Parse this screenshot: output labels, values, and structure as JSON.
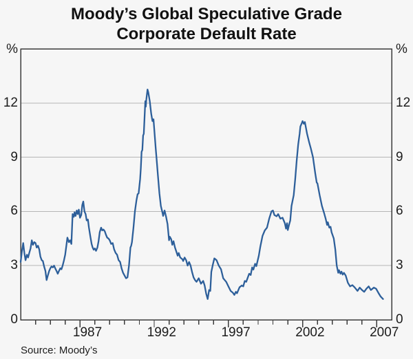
{
  "title": {
    "line1": "Moody’s Global Speculative Grade",
    "line2": "Corporate Default Rate"
  },
  "source": "Source: Moody’s",
  "axes": {
    "y_unit_left": "%",
    "y_unit_right": "%",
    "y_ticks": [
      0,
      3,
      6,
      9,
      12
    ],
    "x_labels": [
      1987,
      1992,
      1997,
      2002,
      2007
    ]
  },
  "colors": {
    "line": "#2d5f9a",
    "grid": "#b5b5b5",
    "frame": "#3a3a3a",
    "text": "#1c1c1c",
    "background": "#f6f6f6"
  },
  "chart_data": {
    "type": "line",
    "series_name": "Moody's global speculative grade corporate default rate (per cent)",
    "unit": "%",
    "x_range": [
      1983,
      2008
    ],
    "y_range": [
      0,
      15
    ],
    "y_gridlines": [
      3,
      6,
      9,
      12
    ],
    "x_tick_every_year": true,
    "points": [
      [
        1983.0,
        3.2
      ],
      [
        1983.08,
        3.75
      ],
      [
        1983.17,
        4.25
      ],
      [
        1983.25,
        3.7
      ],
      [
        1983.33,
        3.3
      ],
      [
        1983.42,
        3.6
      ],
      [
        1983.5,
        3.45
      ],
      [
        1983.58,
        3.7
      ],
      [
        1983.67,
        3.95
      ],
      [
        1983.75,
        4.4
      ],
      [
        1983.83,
        4.15
      ],
      [
        1983.92,
        4.3
      ],
      [
        1984.0,
        4.25
      ],
      [
        1984.08,
        4.0
      ],
      [
        1984.17,
        4.1
      ],
      [
        1984.25,
        3.9
      ],
      [
        1984.33,
        3.5
      ],
      [
        1984.42,
        3.3
      ],
      [
        1984.5,
        3.25
      ],
      [
        1984.58,
        2.95
      ],
      [
        1984.67,
        2.7
      ],
      [
        1984.75,
        2.2
      ],
      [
        1984.83,
        2.45
      ],
      [
        1984.92,
        2.7
      ],
      [
        1985.0,
        2.85
      ],
      [
        1985.08,
        2.95
      ],
      [
        1985.17,
        2.9
      ],
      [
        1985.25,
        3.0
      ],
      [
        1985.33,
        2.85
      ],
      [
        1985.42,
        2.7
      ],
      [
        1985.5,
        2.55
      ],
      [
        1985.58,
        2.7
      ],
      [
        1985.67,
        2.85
      ],
      [
        1985.75,
        2.8
      ],
      [
        1985.83,
        3.0
      ],
      [
        1985.92,
        3.3
      ],
      [
        1986.0,
        3.6
      ],
      [
        1986.08,
        4.1
      ],
      [
        1986.15,
        4.55
      ],
      [
        1986.25,
        4.3
      ],
      [
        1986.33,
        4.4
      ],
      [
        1986.42,
        4.2
      ],
      [
        1986.5,
        5.85
      ],
      [
        1986.58,
        5.7
      ],
      [
        1986.63,
        5.95
      ],
      [
        1986.7,
        5.75
      ],
      [
        1986.78,
        6.05
      ],
      [
        1986.85,
        5.85
      ],
      [
        1986.92,
        6.1
      ],
      [
        1987.0,
        5.65
      ],
      [
        1987.08,
        5.8
      ],
      [
        1987.15,
        6.35
      ],
      [
        1987.22,
        6.55
      ],
      [
        1987.3,
        6.0
      ],
      [
        1987.38,
        5.85
      ],
      [
        1987.45,
        5.5
      ],
      [
        1987.53,
        5.55
      ],
      [
        1987.6,
        5.1
      ],
      [
        1987.7,
        4.6
      ],
      [
        1987.78,
        4.2
      ],
      [
        1987.85,
        4.0
      ],
      [
        1987.92,
        3.88
      ],
      [
        1988.0,
        3.95
      ],
      [
        1988.08,
        3.82
      ],
      [
        1988.17,
        4.0
      ],
      [
        1988.25,
        4.35
      ],
      [
        1988.33,
        4.85
      ],
      [
        1988.42,
        5.1
      ],
      [
        1988.5,
        4.95
      ],
      [
        1988.58,
        5.0
      ],
      [
        1988.67,
        4.9
      ],
      [
        1988.75,
        4.7
      ],
      [
        1988.83,
        4.55
      ],
      [
        1988.92,
        4.5
      ],
      [
        1989.0,
        4.4
      ],
      [
        1989.1,
        4.2
      ],
      [
        1989.2,
        4.25
      ],
      [
        1989.3,
        3.9
      ],
      [
        1989.4,
        3.7
      ],
      [
        1989.5,
        3.6
      ],
      [
        1989.6,
        3.3
      ],
      [
        1989.7,
        3.2
      ],
      [
        1989.8,
        2.85
      ],
      [
        1989.9,
        2.6
      ],
      [
        1990.0,
        2.45
      ],
      [
        1990.1,
        2.3
      ],
      [
        1990.2,
        2.35
      ],
      [
        1990.3,
        3.0
      ],
      [
        1990.4,
        4.0
      ],
      [
        1990.45,
        4.1
      ],
      [
        1990.5,
        4.3
      ],
      [
        1990.6,
        5.1
      ],
      [
        1990.7,
        6.0
      ],
      [
        1990.8,
        6.6
      ],
      [
        1990.88,
        6.95
      ],
      [
        1990.95,
        7.0
      ],
      [
        1991.05,
        7.8
      ],
      [
        1991.1,
        8.4
      ],
      [
        1991.15,
        9.3
      ],
      [
        1991.2,
        9.4
      ],
      [
        1991.25,
        10.2
      ],
      [
        1991.3,
        10.3
      ],
      [
        1991.35,
        11.2
      ],
      [
        1991.4,
        12.1
      ],
      [
        1991.43,
        11.8
      ],
      [
        1991.47,
        12.2
      ],
      [
        1991.55,
        12.75
      ],
      [
        1991.6,
        12.6
      ],
      [
        1991.7,
        12.1
      ],
      [
        1991.8,
        11.4
      ],
      [
        1991.88,
        11.0
      ],
      [
        1991.95,
        11.1
      ],
      [
        1992.0,
        10.6
      ],
      [
        1992.1,
        9.5
      ],
      [
        1992.15,
        9.0
      ],
      [
        1992.25,
        8.0
      ],
      [
        1992.35,
        7.0
      ],
      [
        1992.45,
        6.3
      ],
      [
        1992.55,
        5.95
      ],
      [
        1992.6,
        5.75
      ],
      [
        1992.7,
        6.05
      ],
      [
        1992.8,
        5.7
      ],
      [
        1992.9,
        5.3
      ],
      [
        1993.0,
        4.4
      ],
      [
        1993.05,
        4.6
      ],
      [
        1993.15,
        4.45
      ],
      [
        1993.22,
        4.15
      ],
      [
        1993.3,
        4.35
      ],
      [
        1993.4,
        4.0
      ],
      [
        1993.5,
        3.75
      ],
      [
        1993.58,
        3.55
      ],
      [
        1993.65,
        3.7
      ],
      [
        1993.75,
        3.45
      ],
      [
        1993.9,
        3.35
      ],
      [
        1993.95,
        3.25
      ],
      [
        1994.05,
        3.45
      ],
      [
        1994.15,
        3.3
      ],
      [
        1994.25,
        3.0
      ],
      [
        1994.35,
        3.2
      ],
      [
        1994.45,
        3.0
      ],
      [
        1994.55,
        2.65
      ],
      [
        1994.65,
        2.35
      ],
      [
        1994.75,
        2.2
      ],
      [
        1994.85,
        2.1
      ],
      [
        1995.0,
        2.3
      ],
      [
        1995.15,
        2.0
      ],
      [
        1995.3,
        2.15
      ],
      [
        1995.4,
        1.9
      ],
      [
        1995.5,
        1.45
      ],
      [
        1995.6,
        1.15
      ],
      [
        1995.7,
        1.65
      ],
      [
        1995.78,
        1.6
      ],
      [
        1995.85,
        2.65
      ],
      [
        1995.95,
        3.05
      ],
      [
        1996.05,
        3.4
      ],
      [
        1996.2,
        3.3
      ],
      [
        1996.35,
        3.0
      ],
      [
        1996.5,
        2.8
      ],
      [
        1996.65,
        2.3
      ],
      [
        1996.85,
        2.1
      ],
      [
        1997.0,
        1.85
      ],
      [
        1997.15,
        1.6
      ],
      [
        1997.3,
        1.5
      ],
      [
        1997.4,
        1.38
      ],
      [
        1997.5,
        1.55
      ],
      [
        1997.58,
        1.47
      ],
      [
        1997.75,
        1.8
      ],
      [
        1997.9,
        1.9
      ],
      [
        1998.0,
        1.85
      ],
      [
        1998.1,
        2.15
      ],
      [
        1998.2,
        2.1
      ],
      [
        1998.4,
        2.55
      ],
      [
        1998.5,
        2.48
      ],
      [
        1998.6,
        2.9
      ],
      [
        1998.68,
        2.78
      ],
      [
        1998.8,
        3.1
      ],
      [
        1998.88,
        2.97
      ],
      [
        1999.05,
        3.55
      ],
      [
        1999.15,
        4.05
      ],
      [
        1999.3,
        4.65
      ],
      [
        1999.45,
        4.95
      ],
      [
        1999.6,
        5.1
      ],
      [
        1999.75,
        5.6
      ],
      [
        1999.9,
        6.0
      ],
      [
        2000.0,
        6.05
      ],
      [
        2000.1,
        5.8
      ],
      [
        2000.25,
        5.73
      ],
      [
        2000.35,
        5.85
      ],
      [
        2000.5,
        5.6
      ],
      [
        2000.65,
        5.65
      ],
      [
        2000.8,
        5.35
      ],
      [
        2000.88,
        5.05
      ],
      [
        2000.95,
        5.35
      ],
      [
        2001.0,
        4.97
      ],
      [
        2001.1,
        5.3
      ],
      [
        2001.17,
        5.5
      ],
      [
        2001.25,
        6.3
      ],
      [
        2001.4,
        6.9
      ],
      [
        2001.5,
        7.8
      ],
      [
        2001.6,
        8.8
      ],
      [
        2001.7,
        9.7
      ],
      [
        2001.8,
        10.3
      ],
      [
        2001.85,
        10.7
      ],
      [
        2001.95,
        10.9
      ],
      [
        2002.0,
        11.0
      ],
      [
        2002.08,
        10.85
      ],
      [
        2002.15,
        10.95
      ],
      [
        2002.3,
        10.3
      ],
      [
        2002.45,
        9.8
      ],
      [
        2002.55,
        9.5
      ],
      [
        2002.7,
        9.0
      ],
      [
        2002.85,
        8.1
      ],
      [
        2002.95,
        7.6
      ],
      [
        2003.0,
        7.55
      ],
      [
        2003.15,
        6.9
      ],
      [
        2003.3,
        6.3
      ],
      [
        2003.45,
        5.9
      ],
      [
        2003.55,
        5.6
      ],
      [
        2003.65,
        5.25
      ],
      [
        2003.7,
        5.4
      ],
      [
        2003.8,
        5.1
      ],
      [
        2003.88,
        5.15
      ],
      [
        2003.95,
        4.85
      ],
      [
        2004.1,
        4.5
      ],
      [
        2004.2,
        3.9
      ],
      [
        2004.3,
        3.0
      ],
      [
        2004.4,
        2.6
      ],
      [
        2004.45,
        2.75
      ],
      [
        2004.55,
        2.55
      ],
      [
        2004.62,
        2.67
      ],
      [
        2004.7,
        2.5
      ],
      [
        2004.78,
        2.6
      ],
      [
        2004.9,
        2.45
      ],
      [
        2005.05,
        2.05
      ],
      [
        2005.2,
        1.85
      ],
      [
        2005.35,
        1.92
      ],
      [
        2005.5,
        1.8
      ],
      [
        2005.7,
        1.6
      ],
      [
        2005.85,
        1.78
      ],
      [
        2006.0,
        1.65
      ],
      [
        2006.15,
        1.55
      ],
      [
        2006.3,
        1.72
      ],
      [
        2006.45,
        1.85
      ],
      [
        2006.6,
        1.65
      ],
      [
        2006.8,
        1.78
      ],
      [
        2006.95,
        1.72
      ],
      [
        2007.1,
        1.5
      ],
      [
        2007.25,
        1.3
      ],
      [
        2007.42,
        1.15
      ]
    ]
  }
}
